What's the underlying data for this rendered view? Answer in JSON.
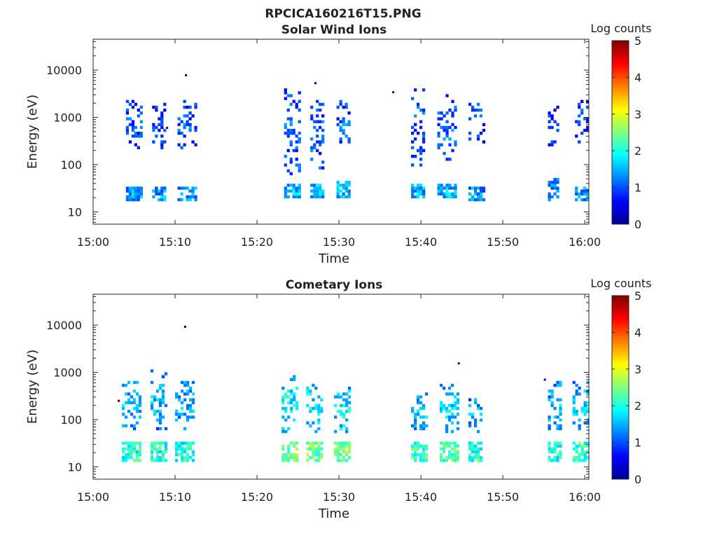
{
  "figure_title": "RPCICA160216T15.PNG",
  "colormap": [
    "#00008f",
    "#0000ff",
    "#0080ff",
    "#00ffff",
    "#80ff80",
    "#ffff00",
    "#ff8000",
    "#ff0000",
    "#800000"
  ],
  "chart_data": [
    {
      "type": "heatmap",
      "title": "Solar Wind Ions",
      "xlabel": "Time",
      "ylabel": "Energy (eV)",
      "x_ticks": [
        "15:00",
        "15:10",
        "15:20",
        "15:30",
        "15:40",
        "15:50",
        "16:00"
      ],
      "x_tick_minutes": [
        0,
        10,
        20,
        30,
        40,
        50,
        60
      ],
      "xlim_minutes": [
        0,
        60.5
      ],
      "y_scale": "log",
      "y_ticks": [
        "10",
        "100",
        "1000",
        "10000"
      ],
      "y_tick_values": [
        10,
        100,
        1000,
        10000
      ],
      "ylim": [
        5.5,
        45000
      ],
      "colorbar": {
        "label": "Log counts",
        "ticks": [
          "0",
          "1",
          "2",
          "3",
          "4",
          "5"
        ],
        "range": [
          0,
          5
        ]
      },
      "bursts": [
        {
          "t_start": 4.0,
          "t_end": 5.8,
          "low_band": [
            16,
            32
          ],
          "high_band": [
            180,
            2500
          ],
          "intensity": 0.9
        },
        {
          "t_start": 7.2,
          "t_end": 8.8,
          "low_band": [
            16,
            32
          ],
          "high_band": [
            220,
            2400
          ],
          "intensity": 0.9
        },
        {
          "t_start": 10.3,
          "t_end": 12.4,
          "low_band": [
            16,
            32
          ],
          "high_band": [
            200,
            2200
          ],
          "intensity": 0.9
        },
        {
          "t_start": 23.3,
          "t_end": 25.2,
          "low_band": [
            20,
            40
          ],
          "high_band": [
            60,
            4000
          ],
          "intensity": 1.1
        },
        {
          "t_start": 26.5,
          "t_end": 28.0,
          "low_band": [
            20,
            40
          ],
          "high_band": [
            70,
            2500
          ],
          "intensity": 1.1
        },
        {
          "t_start": 29.7,
          "t_end": 31.2,
          "low_band": [
            20,
            45
          ],
          "high_band": [
            200,
            2200
          ],
          "intensity": 1.1
        },
        {
          "t_start": 38.8,
          "t_end": 40.5,
          "low_band": [
            20,
            38
          ],
          "high_band": [
            90,
            4200
          ],
          "intensity": 1.0
        },
        {
          "t_start": 42.0,
          "t_end": 44.3,
          "low_band": [
            20,
            38
          ],
          "high_band": [
            90,
            3300
          ],
          "intensity": 1.1
        },
        {
          "t_start": 45.8,
          "t_end": 47.6,
          "low_band": [
            17,
            35
          ],
          "high_band": [
            300,
            2400
          ],
          "intensity": 0.9
        },
        {
          "t_start": 55.5,
          "t_end": 56.6,
          "low_band": [
            16,
            55
          ],
          "high_band": [
            250,
            1800
          ],
          "intensity": 0.8
        },
        {
          "t_start": 58.8,
          "t_end": 60.3,
          "low_band": [
            16,
            32
          ],
          "high_band": [
            300,
            2400
          ],
          "intensity": 0.9
        }
      ],
      "isolated_points": [
        {
          "t": 11.2,
          "energy": 7800
        },
        {
          "t": 8.9,
          "energy": 600
        },
        {
          "t": 27.0,
          "energy": 5300
        },
        {
          "t": 36.5,
          "energy": 3400
        }
      ]
    },
    {
      "type": "heatmap",
      "title": "Cometary Ions",
      "xlabel": "Time",
      "ylabel": "Energy (eV)",
      "x_ticks": [
        "15:00",
        "15:10",
        "15:20",
        "15:30",
        "15:40",
        "15:50",
        "16:00"
      ],
      "x_tick_minutes": [
        0,
        10,
        20,
        30,
        40,
        50,
        60
      ],
      "xlim_minutes": [
        0,
        60.5
      ],
      "y_scale": "log",
      "y_ticks": [
        "10",
        "100",
        "1000",
        "10000"
      ],
      "y_tick_values": [
        10,
        100,
        1000,
        10000
      ],
      "ylim": [
        5.5,
        45000
      ],
      "colorbar": {
        "label": "Log counts",
        "ticks": [
          "0",
          "1",
          "2",
          "3",
          "4",
          "5"
        ],
        "range": [
          0,
          5
        ]
      },
      "bursts": [
        {
          "t_start": 3.5,
          "t_end": 5.7,
          "low_band": [
            12,
            35
          ],
          "high_band": [
            60,
            650
          ],
          "intensity": 1.6
        },
        {
          "t_start": 7.0,
          "t_end": 8.8,
          "low_band": [
            12,
            35
          ],
          "high_band": [
            60,
            1100
          ],
          "intensity": 1.6
        },
        {
          "t_start": 10.0,
          "t_end": 12.3,
          "low_band": [
            12,
            35
          ],
          "high_band": [
            60,
            650
          ],
          "intensity": 1.6
        },
        {
          "t_start": 23.0,
          "t_end": 25.0,
          "low_band": [
            12,
            35
          ],
          "high_band": [
            50,
            950
          ],
          "intensity": 2.0
        },
        {
          "t_start": 26.0,
          "t_end": 28.0,
          "low_band": [
            12,
            35
          ],
          "high_band": [
            50,
            650
          ],
          "intensity": 2.0
        },
        {
          "t_start": 29.4,
          "t_end": 31.3,
          "low_band": [
            12,
            35
          ],
          "high_band": [
            50,
            500
          ],
          "intensity": 2.0
        },
        {
          "t_start": 38.8,
          "t_end": 40.6,
          "low_band": [
            12,
            35
          ],
          "high_band": [
            50,
            350
          ],
          "intensity": 1.7
        },
        {
          "t_start": 42.3,
          "t_end": 44.5,
          "low_band": [
            12,
            35
          ],
          "high_band": [
            50,
            600
          ],
          "intensity": 1.8
        },
        {
          "t_start": 45.8,
          "t_end": 47.5,
          "low_band": [
            12,
            35
          ],
          "high_band": [
            50,
            300
          ],
          "intensity": 1.6
        },
        {
          "t_start": 55.5,
          "t_end": 57.0,
          "low_band": [
            12,
            35
          ],
          "high_band": [
            50,
            700
          ],
          "intensity": 1.6
        },
        {
          "t_start": 58.5,
          "t_end": 60.3,
          "low_band": [
            12,
            35
          ],
          "high_band": [
            50,
            650
          ],
          "intensity": 1.7
        }
      ],
      "isolated_points": [
        {
          "t": 11.1,
          "energy": 9200
        },
        {
          "t": 44.5,
          "energy": 1550
        },
        {
          "t": 3.0,
          "energy": 250
        },
        {
          "t": 55.0,
          "energy": 700
        }
      ]
    }
  ]
}
